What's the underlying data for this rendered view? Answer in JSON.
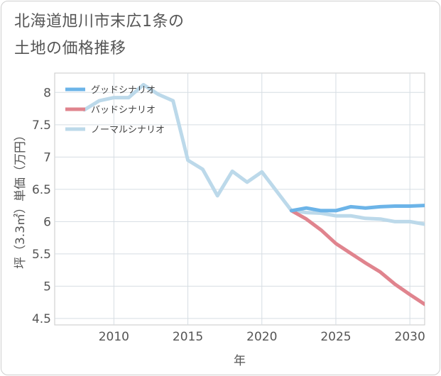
{
  "title": {
    "line1": "北海道旭川市末広1条の",
    "line2": "土地の価格推移"
  },
  "chart_data": {
    "type": "line",
    "title": "北海道旭川市末広1条の土地の価格推移",
    "xlabel": "年",
    "ylabel": "坪（3.3㎡）単価（万円）",
    "xlim": [
      2006,
      2031
    ],
    "ylim": [
      4.4,
      8.3
    ],
    "xticks": [
      2010,
      2015,
      2020,
      2025,
      2030
    ],
    "yticks": [
      4.5,
      5,
      5.5,
      6,
      6.5,
      7,
      7.5,
      8
    ],
    "ytick_labels": [
      "4.5",
      "5",
      "5.5",
      "6",
      "6.5",
      "7",
      "7.5",
      "8"
    ],
    "grid": true,
    "legend_position": "top-left",
    "series": [
      {
        "name": "グッドシナリオ",
        "color": "#6cb4e8",
        "x": [
          2022,
          2023,
          2024,
          2025,
          2026,
          2027,
          2028,
          2029,
          2030,
          2031
        ],
        "y": [
          6.17,
          6.21,
          6.17,
          6.17,
          6.23,
          6.21,
          6.23,
          6.24,
          6.24,
          6.25
        ]
      },
      {
        "name": "バッドシナリオ",
        "color": "#e0848e",
        "x": [
          2022,
          2023,
          2024,
          2025,
          2026,
          2027,
          2028,
          2029,
          2030,
          2031
        ],
        "y": [
          6.17,
          6.04,
          5.87,
          5.66,
          5.51,
          5.36,
          5.22,
          5.03,
          4.87,
          4.72
        ]
      },
      {
        "name": "ノーマルシナリオ",
        "color": "#bcd9ea",
        "x": [
          2008,
          2009,
          2010,
          2011,
          2012,
          2013,
          2014,
          2015,
          2016,
          2017,
          2018,
          2019,
          2020,
          2021,
          2022,
          2023,
          2024,
          2025,
          2026,
          2027,
          2028,
          2029,
          2030,
          2031
        ],
        "y": [
          7.73,
          7.87,
          7.92,
          7.92,
          8.12,
          7.97,
          7.87,
          6.95,
          6.81,
          6.4,
          6.78,
          6.61,
          6.77,
          6.47,
          6.17,
          6.14,
          6.13,
          6.09,
          6.09,
          6.05,
          6.04,
          6.0,
          6.0,
          5.96
        ]
      }
    ]
  }
}
